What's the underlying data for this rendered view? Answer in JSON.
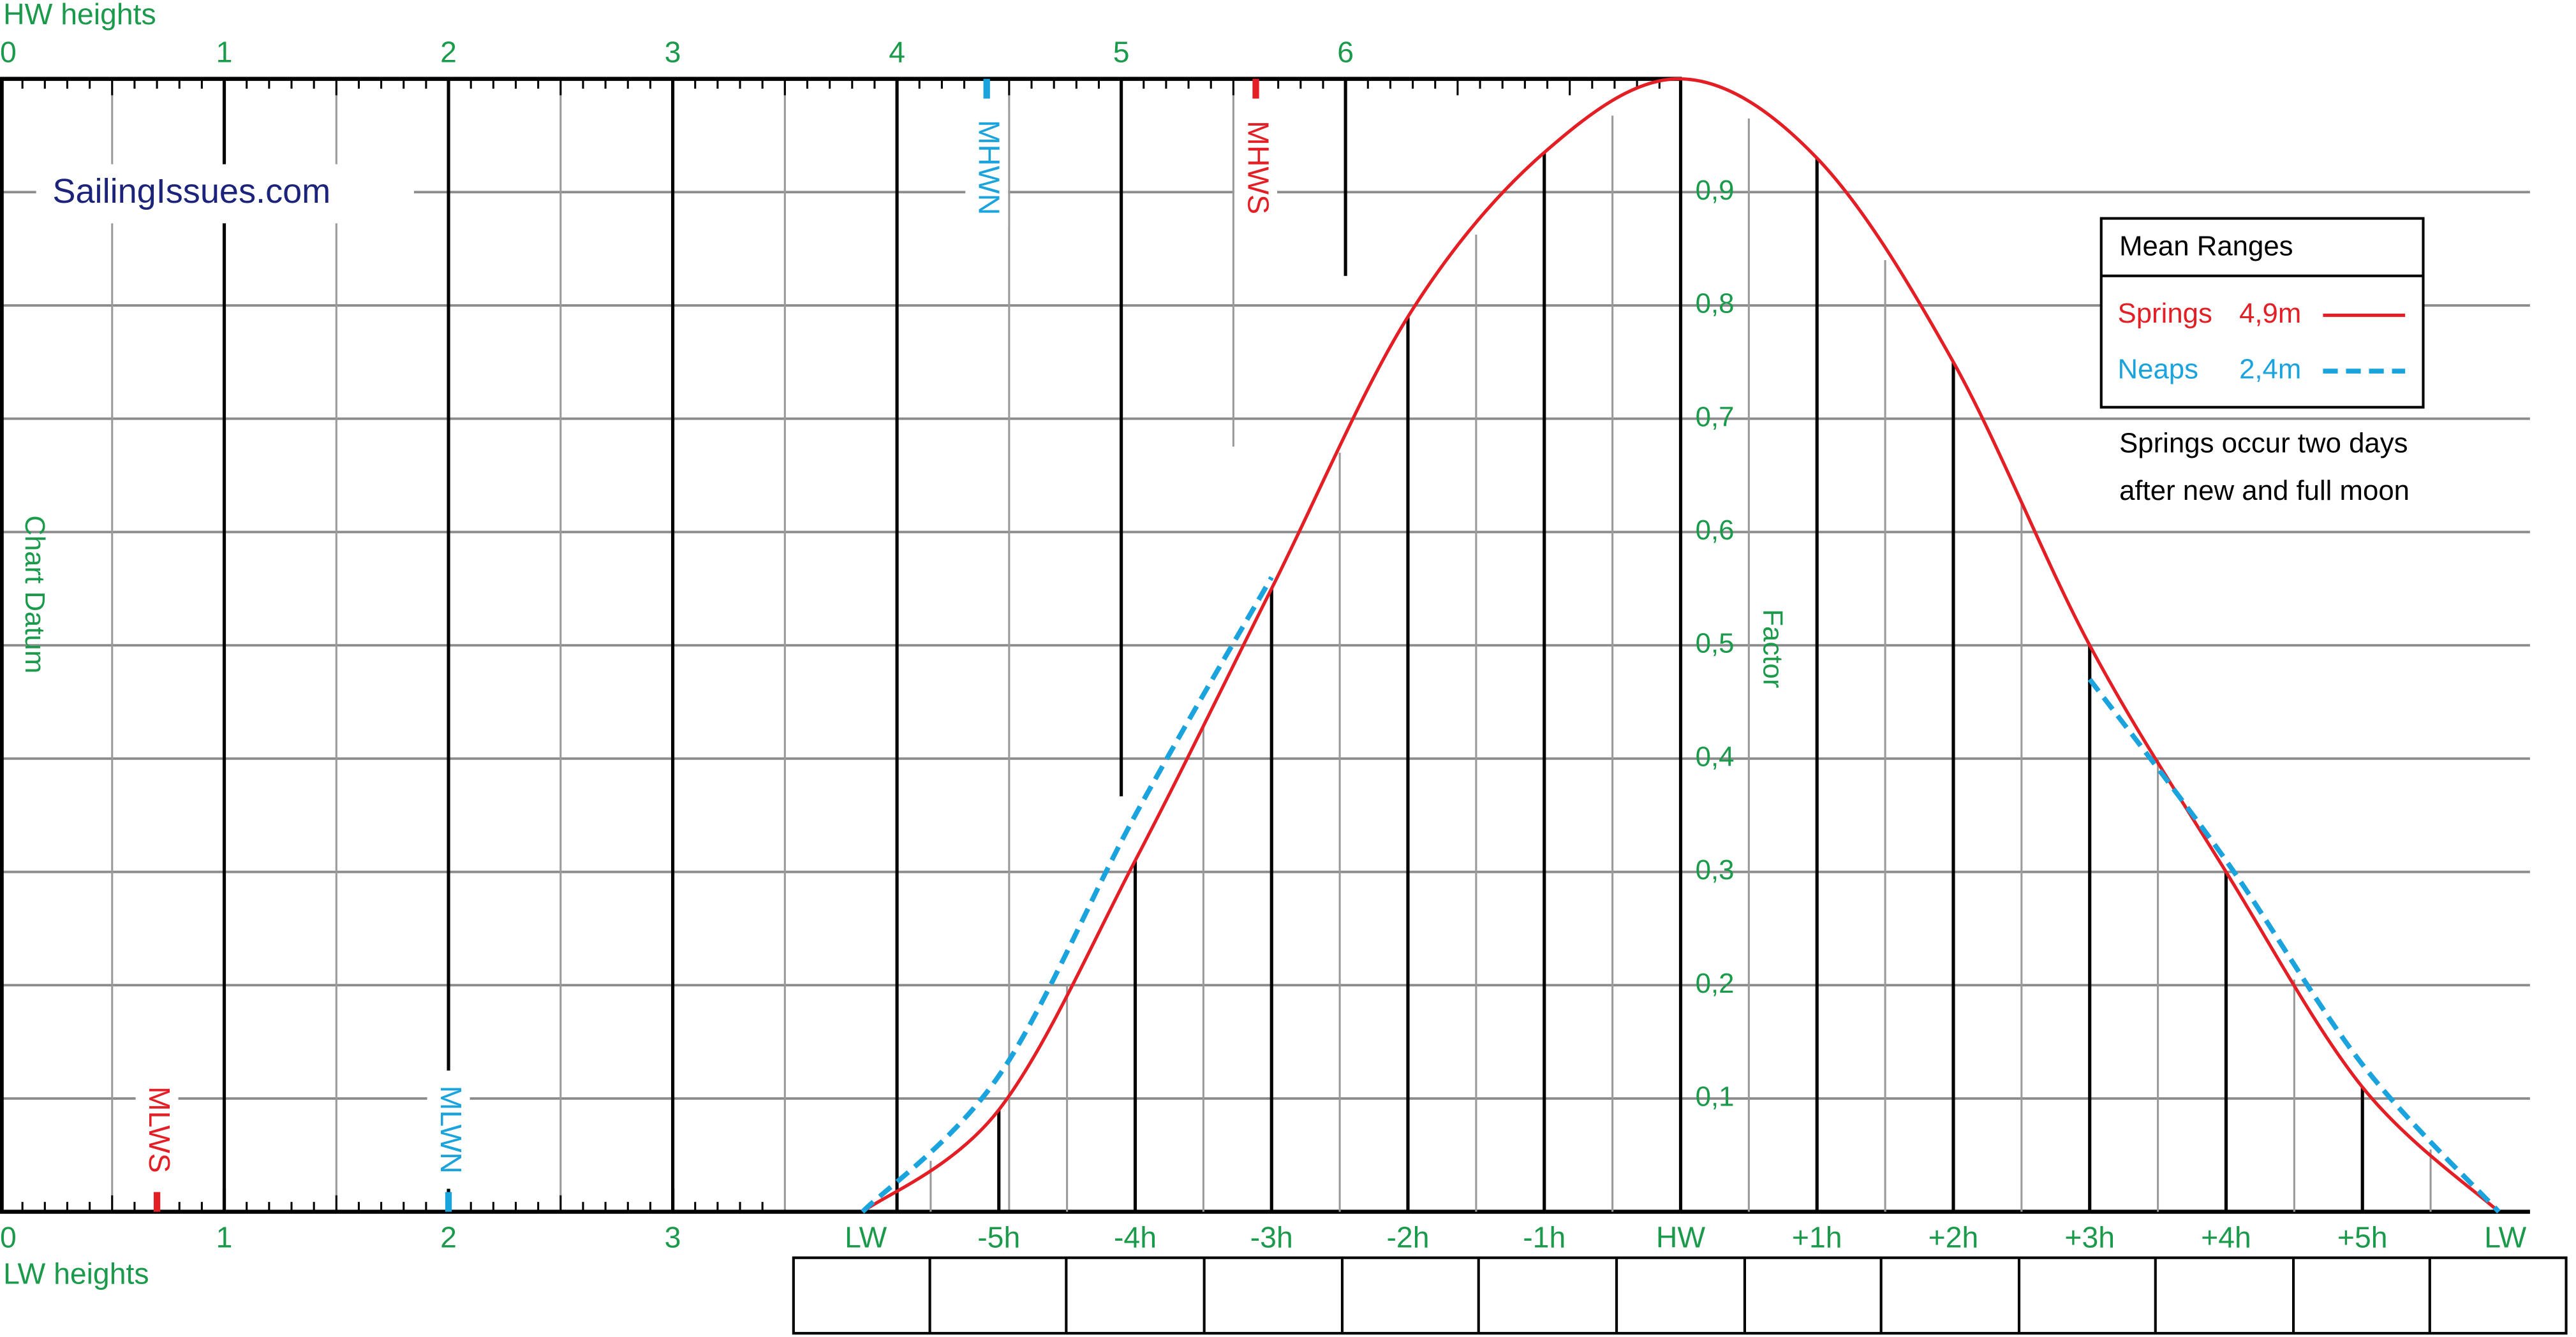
{
  "chart_data": {
    "type": "line",
    "brand": "SailingIssues.com",
    "hw_axis": {
      "label": "HW heights",
      "ticks": [
        0,
        1,
        2,
        3,
        4,
        5,
        6
      ]
    },
    "lw_axis": {
      "label": "LW heights",
      "ticks": [
        0,
        1,
        2,
        3
      ]
    },
    "hlim": [
      0,
      7.5
    ],
    "y_label_left": "Chart Datum",
    "y_label": "Factor",
    "ylim": [
      0,
      1
    ],
    "yticks": [
      {
        "value": 0.1,
        "label": "0,1"
      },
      {
        "value": 0.2,
        "label": "0,2"
      },
      {
        "value": 0.3,
        "label": "0,3"
      },
      {
        "value": 0.4,
        "label": "0,4"
      },
      {
        "value": 0.5,
        "label": "0,5"
      },
      {
        "value": 0.6,
        "label": "0,6"
      },
      {
        "value": 0.7,
        "label": "0,7"
      },
      {
        "value": 0.8,
        "label": "0,8"
      },
      {
        "value": 0.9,
        "label": "0,9"
      }
    ],
    "grid": true,
    "categories": [
      "LW",
      "-5h",
      "-4h",
      "-3h",
      "-2h",
      "-1h",
      "HW",
      "+1h",
      "+2h",
      "+3h",
      "+4h",
      "+5h",
      "LW"
    ],
    "series": [
      {
        "name": "Springs",
        "range": "4,9m",
        "color": "#e31e24",
        "dashed": false,
        "values": [
          0,
          0.09,
          0.31,
          0.55,
          0.79,
          0.935,
          1.0,
          0.93,
          0.75,
          0.5,
          0.3,
          0.11,
          0
        ]
      },
      {
        "name": "Neaps",
        "range": "2,4m",
        "color": "#1aa3dc",
        "dashed": true,
        "values": [
          0,
          0.12,
          0.35,
          0.56,
          null,
          null,
          null,
          null,
          null,
          0.47,
          0.31,
          0.13,
          0
        ]
      }
    ],
    "markers": [
      {
        "label": "MHWN",
        "height": 4.4,
        "side": "hw",
        "color": "#1aa3dc"
      },
      {
        "label": "MHWS",
        "height": 5.6,
        "side": "hw",
        "color": "#e31e24"
      },
      {
        "label": "MLWS",
        "height": 0.7,
        "side": "lw",
        "color": "#e31e24"
      },
      {
        "label": "MLWN",
        "height": 2.0,
        "side": "lw",
        "color": "#1aa3dc"
      }
    ],
    "legend": {
      "title": "Mean Ranges"
    },
    "note": [
      "Springs occur two days",
      "after new and full moon"
    ]
  }
}
